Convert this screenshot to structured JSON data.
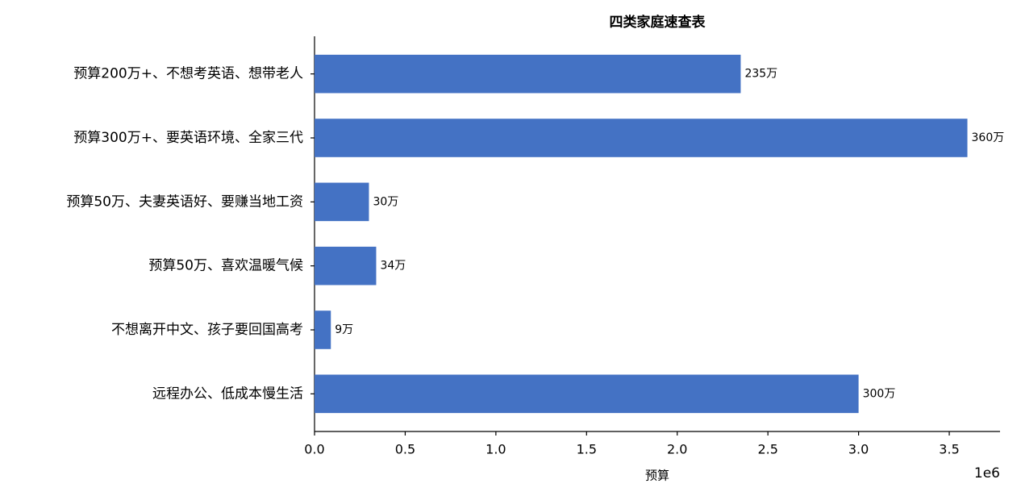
{
  "chart_data": {
    "type": "bar",
    "orientation": "horizontal",
    "title": "四类家庭速查表",
    "x_label": "预算",
    "x_offset_label": "1e6",
    "categories": [
      "预算200万+、不想考英语、想带老人",
      "预算300万+、要英语环境、全家三代",
      "预算50万、夫妻英语好、要赚当地工资",
      "预算50万、喜欢温暖气候",
      "不想离开中文、孩子要回国高考",
      "远程办公、低成本慢生活"
    ],
    "values": [
      2350000,
      3600000,
      300000,
      340000,
      90000,
      3000000
    ],
    "value_labels": [
      "235万",
      "360万",
      "30万",
      "34万",
      "9万",
      "300万"
    ],
    "color": "#4472c4",
    "xlim": [
      0,
      3780000
    ],
    "xticks": [
      {
        "value": 0,
        "label": "0.0"
      },
      {
        "value": 500000,
        "label": "0.5"
      },
      {
        "value": 1000000,
        "label": "1.0"
      },
      {
        "value": 1500000,
        "label": "1.5"
      },
      {
        "value": 2000000,
        "label": "2.0"
      },
      {
        "value": 2500000,
        "label": "2.5"
      },
      {
        "value": 3000000,
        "label": "3.0"
      },
      {
        "value": 3500000,
        "label": "3.5"
      }
    ],
    "grid": false
  }
}
